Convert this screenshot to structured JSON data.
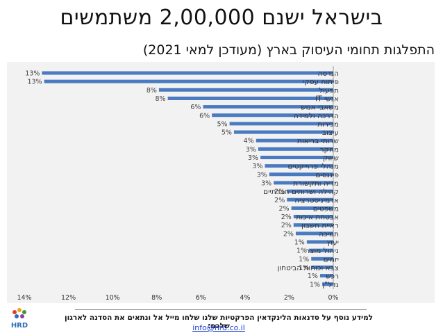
{
  "header": {
    "title": "בישראל ישנם 2,00,000 משתמשים",
    "subtitle": "התפלגות תחומי העיסוק בארץ (מעודכן למאי 2021)"
  },
  "footer": {
    "text": "למידע נוסף על סדנאות הלינקדאין הפרקטיות שלנו שלחו מייל אל ונתאים את הסדנה לארגון שלכם:",
    "email": "info@hrd.co.il",
    "logo_text": "HRD"
  },
  "colors": {
    "bar": "#4a7bc0",
    "plot_bg": "#f2f2f2"
  },
  "chart_data": {
    "type": "bar",
    "orientation": "horizontal",
    "x_axis_reversed": true,
    "title": "התפלגות תחומי העיסוק בארץ (מעודכן למאי 2021)",
    "xlim": [
      0,
      14
    ],
    "x_ticks": [
      0,
      2,
      4,
      6,
      8,
      10,
      12,
      14
    ],
    "x_tick_labels": [
      "0%",
      "2%",
      "4%",
      "6%",
      "8%",
      "10%",
      "12%",
      "14%"
    ],
    "categories": [
      "הנדסה",
      "פיתוח עסקי",
      "תפעול",
      "אנשי IT",
      "משאבי אנוש",
      "הדרכה ולמידה",
      "מכירות",
      "עיצוב",
      "שרותי בריאות",
      "מחקר",
      "שיווק",
      "מנהלי פרוייקטים",
      "פיננסים",
      "מדיה ותקשורת",
      "קהילה ושרותים חברתיים",
      "אדמיניסטרציה",
      "משפטים",
      "אבטחת איכות",
      "ראיית חשבון",
      "תמיכה",
      "יעוץ",
      "ניהול מוצר",
      "יזמים",
      "צבא וכוחות הביטחון",
      "רכש",
      "נדל\"ן"
    ],
    "values": [
      13.2,
      13.1,
      7.9,
      7.5,
      5.9,
      5.5,
      4.7,
      4.5,
      3.5,
      3.4,
      3.3,
      3.1,
      2.9,
      2.7,
      2.1,
      2.1,
      1.9,
      1.8,
      1.8,
      1.7,
      1.2,
      1.1,
      1.0,
      1.0,
      0.6,
      0.5
    ],
    "data_labels": [
      "13%",
      "13%",
      "8%",
      "8%",
      "6%",
      "6%",
      "5%",
      "5%",
      "4%",
      "3%",
      "3%",
      "3%",
      "3%",
      "3%",
      "2%",
      "2%",
      "2%",
      "2%",
      "2%",
      "2%",
      "1%",
      "1%",
      "1%",
      "1%",
      "1%",
      "1%"
    ]
  }
}
